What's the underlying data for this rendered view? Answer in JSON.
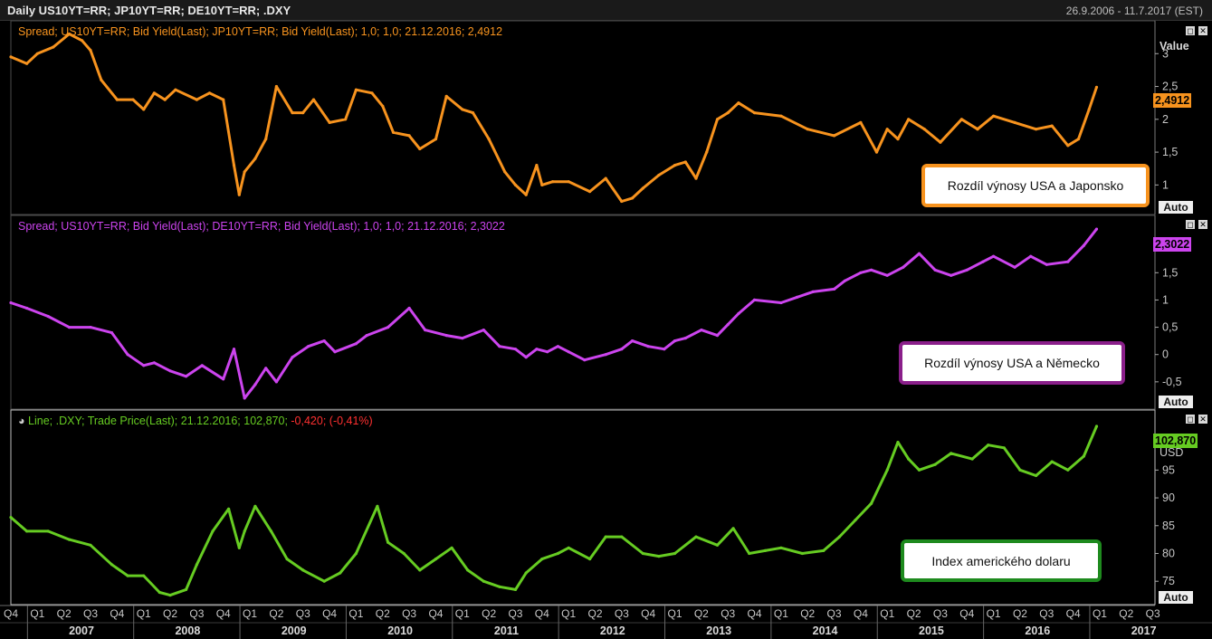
{
  "header": {
    "title": "Daily US10YT=RR; JP10YT=RR; DE10YT=RR; .DXY",
    "date_range": "26.9.2006 - 11.7.2017 (EST)"
  },
  "panels": [
    {
      "legend": "Spread; US10YT=RR; Bid Yield(Last); JP10YT=RR; Bid Yield(Last);  1,0; 1,0; 21.12.2016; 2,4912",
      "axis_title": "Value",
      "last_value": "2,4912",
      "annotation": "Rozdíl výnosy USA a Japonsko",
      "auto_label": "Auto",
      "color": "#f7931e",
      "annotation_border": "#f7931e"
    },
    {
      "legend": "Spread; US10YT=RR; Bid Yield(Last); DE10YT=RR; Bid Yield(Last);  1,0; 1,0; 21.12.2016; 2,3022",
      "last_value": "2,3022",
      "annotation": "Rozdíl výnosy USA a Německo",
      "auto_label": "Auto",
      "color": "#cc44ee",
      "annotation_border": "#8a1f8a"
    },
    {
      "legend_main": "Line; .DXY; Trade Price(Last); 21.12.2016; 102,870; ",
      "legend_change": "-0,420; (-0,41%)",
      "axis_unit": "USD",
      "last_value": "102,870",
      "annotation": "Index amerického dolaru",
      "auto_label": "Auto",
      "color": "#66cc22",
      "annotation_border": "#1e8a1e"
    }
  ],
  "x_axis": {
    "quarters": [
      "Q4",
      "Q1",
      "Q2",
      "Q3",
      "Q4",
      "Q1",
      "Q2",
      "Q3",
      "Q4",
      "Q1",
      "Q2",
      "Q3",
      "Q4",
      "Q1",
      "Q2",
      "Q3",
      "Q4",
      "Q1",
      "Q2",
      "Q3",
      "Q4",
      "Q1",
      "Q2",
      "Q3",
      "Q4",
      "Q1",
      "Q2",
      "Q3",
      "Q4",
      "Q1",
      "Q2",
      "Q3",
      "Q4",
      "Q1",
      "Q2",
      "Q3",
      "Q4",
      "Q1",
      "Q2",
      "Q3",
      "Q4",
      "Q1",
      "Q2",
      "Q3"
    ],
    "years": [
      "2007",
      "2008",
      "2009",
      "2010",
      "2011",
      "2012",
      "2013",
      "2014",
      "2015",
      "2016",
      "2017"
    ]
  },
  "chart_data": [
    {
      "type": "line",
      "title": "Spread; US10YT=RR; Bid Yield(Last); JP10YT=RR; Bid Yield(Last)",
      "ylabel": "Value",
      "ylim": [
        0.55,
        3.5
      ],
      "yticks": [
        "1",
        "1,5",
        "2",
        "2,5",
        "3"
      ],
      "x": [
        2006.75,
        2006.9,
        2007.0,
        2007.15,
        2007.3,
        2007.42,
        2007.5,
        2007.6,
        2007.75,
        2007.9,
        2008.0,
        2008.1,
        2008.2,
        2008.3,
        2008.5,
        2008.62,
        2008.75,
        2008.85,
        2008.9,
        2008.95,
        2009.05,
        2009.15,
        2009.25,
        2009.4,
        2009.5,
        2009.6,
        2009.75,
        2009.9,
        2010.0,
        2010.15,
        2010.25,
        2010.35,
        2010.5,
        2010.6,
        2010.75,
        2010.85,
        2011.0,
        2011.1,
        2011.25,
        2011.4,
        2011.5,
        2011.6,
        2011.7,
        2011.75,
        2011.85,
        2012.0,
        2012.2,
        2012.35,
        2012.5,
        2012.6,
        2012.7,
        2012.85,
        2013.0,
        2013.1,
        2013.2,
        2013.3,
        2013.4,
        2013.5,
        2013.6,
        2013.75,
        2014.0,
        2014.25,
        2014.5,
        2014.75,
        2014.9,
        2015.0,
        2015.1,
        2015.2,
        2015.35,
        2015.5,
        2015.7,
        2015.85,
        2016.0,
        2016.2,
        2016.4,
        2016.55,
        2016.7,
        2016.8,
        2016.9,
        2016.97
      ],
      "series": [
        {
          "values": [
            2.95,
            2.85,
            3.0,
            3.1,
            3.3,
            3.2,
            3.05,
            2.6,
            2.3,
            2.3,
            2.15,
            2.4,
            2.3,
            2.45,
            2.3,
            2.4,
            2.3,
            1.3,
            0.85,
            1.2,
            1.4,
            1.7,
            2.5,
            2.1,
            2.1,
            2.3,
            1.95,
            2.0,
            2.45,
            2.4,
            2.2,
            1.8,
            1.75,
            1.55,
            1.7,
            2.35,
            2.15,
            2.1,
            1.7,
            1.2,
            1.0,
            0.85,
            1.3,
            1.0,
            1.05,
            1.05,
            0.9,
            1.1,
            0.75,
            0.8,
            0.95,
            1.15,
            1.3,
            1.35,
            1.1,
            1.5,
            2.0,
            2.1,
            2.25,
            2.1,
            2.05,
            1.85,
            1.75,
            1.95,
            1.5,
            1.85,
            1.7,
            2.0,
            1.85,
            1.65,
            2.0,
            1.85,
            2.05,
            1.95,
            1.85,
            1.9,
            1.6,
            1.7,
            2.15,
            2.49
          ]
        }
      ]
    },
    {
      "type": "line",
      "title": "Spread; US10YT=RR; Bid Yield(Last); DE10YT=RR; Bid Yield(Last)",
      "ylim": [
        -1.0,
        2.55
      ],
      "yticks": [
        "-0,5",
        "0",
        "0,5",
        "1",
        "1,5",
        "2"
      ],
      "x": [
        2006.75,
        2006.9,
        2007.1,
        2007.3,
        2007.5,
        2007.7,
        2007.85,
        2008.0,
        2008.1,
        2008.25,
        2008.4,
        2008.55,
        2008.75,
        2008.85,
        2008.95,
        2009.05,
        2009.15,
        2009.25,
        2009.4,
        2009.55,
        2009.7,
        2009.8,
        2010.0,
        2010.1,
        2010.3,
        2010.5,
        2010.65,
        2010.85,
        2011.0,
        2011.2,
        2011.35,
        2011.5,
        2011.6,
        2011.7,
        2011.8,
        2011.9,
        2012.0,
        2012.15,
        2012.35,
        2012.5,
        2012.6,
        2012.75,
        2012.9,
        2013.0,
        2013.1,
        2013.25,
        2013.4,
        2013.5,
        2013.6,
        2013.75,
        2014.0,
        2014.15,
        2014.3,
        2014.5,
        2014.6,
        2014.75,
        2014.85,
        2015.0,
        2015.15,
        2015.3,
        2015.45,
        2015.6,
        2015.75,
        2015.9,
        2016.0,
        2016.2,
        2016.35,
        2016.5,
        2016.7,
        2016.85,
        2016.97
      ],
      "series": [
        {
          "values": [
            0.95,
            0.85,
            0.7,
            0.5,
            0.5,
            0.4,
            0.0,
            -0.2,
            -0.15,
            -0.3,
            -0.4,
            -0.2,
            -0.45,
            0.1,
            -0.8,
            -0.55,
            -0.25,
            -0.5,
            -0.05,
            0.15,
            0.25,
            0.05,
            0.2,
            0.35,
            0.5,
            0.85,
            0.45,
            0.35,
            0.3,
            0.45,
            0.15,
            0.1,
            -0.05,
            0.1,
            0.05,
            0.15,
            0.05,
            -0.1,
            0.0,
            0.1,
            0.25,
            0.15,
            0.1,
            0.25,
            0.3,
            0.45,
            0.35,
            0.55,
            0.75,
            1.0,
            0.95,
            1.05,
            1.15,
            1.2,
            1.35,
            1.5,
            1.55,
            1.45,
            1.6,
            1.85,
            1.55,
            1.45,
            1.55,
            1.7,
            1.8,
            1.6,
            1.8,
            1.65,
            1.7,
            2.0,
            2.3
          ]
        }
      ]
    },
    {
      "type": "line",
      "title": "Line; .DXY; Trade Price(Last)",
      "ylabel": "USD",
      "ylim": [
        70.8,
        105.8
      ],
      "yticks": [
        "75",
        "80",
        "85",
        "90",
        "95"
      ],
      "x": [
        2006.75,
        2006.9,
        2007.1,
        2007.3,
        2007.5,
        2007.7,
        2007.85,
        2008.0,
        2008.15,
        2008.25,
        2008.4,
        2008.5,
        2008.65,
        2008.8,
        2008.9,
        2008.95,
        2009.05,
        2009.2,
        2009.35,
        2009.5,
        2009.7,
        2009.85,
        2010.0,
        2010.2,
        2010.3,
        2010.45,
        2010.6,
        2010.75,
        2010.9,
        2011.05,
        2011.2,
        2011.35,
        2011.5,
        2011.6,
        2011.75,
        2011.9,
        2012.0,
        2012.2,
        2012.35,
        2012.5,
        2012.7,
        2012.85,
        2013.0,
        2013.2,
        2013.4,
        2013.55,
        2013.7,
        2013.85,
        2014.0,
        2014.2,
        2014.4,
        2014.55,
        2014.7,
        2014.85,
        2015.0,
        2015.1,
        2015.2,
        2015.3,
        2015.45,
        2015.6,
        2015.8,
        2015.95,
        2016.1,
        2016.25,
        2016.4,
        2016.55,
        2016.7,
        2016.85,
        2016.97
      ],
      "series": [
        {
          "values": [
            86.5,
            84.0,
            84.0,
            82.5,
            81.5,
            78.0,
            76.0,
            76.0,
            73.0,
            72.5,
            73.5,
            78.0,
            84.0,
            88.0,
            81.0,
            84.0,
            88.5,
            84.0,
            79.0,
            77.0,
            75.0,
            76.5,
            80.0,
            88.5,
            82.0,
            80.0,
            77.0,
            79.0,
            81.0,
            77.0,
            75.0,
            74.0,
            73.5,
            76.5,
            79.0,
            80.0,
            81.0,
            79.0,
            83.0,
            83.0,
            80.0,
            79.5,
            80.0,
            83.0,
            81.5,
            84.5,
            80.0,
            80.5,
            81.0,
            80.0,
            80.5,
            83.0,
            86.0,
            89.0,
            95.0,
            100.0,
            97.0,
            95.0,
            96.0,
            98.0,
            97.0,
            99.5,
            99.0,
            95.0,
            94.0,
            96.5,
            95.0,
            97.5,
            102.87
          ]
        }
      ]
    }
  ]
}
